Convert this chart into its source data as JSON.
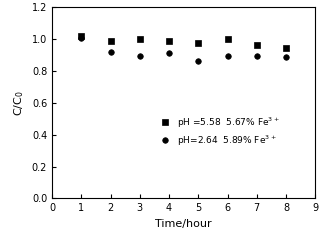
{
  "series1": {
    "x": [
      1,
      2,
      3,
      4,
      5,
      6,
      7,
      8
    ],
    "y": [
      1.02,
      0.985,
      1.0,
      0.985,
      0.975,
      1.0,
      0.965,
      0.945
    ],
    "marker": "s",
    "color": "black",
    "label": "pH =5.58  5.67% Fe$^{3+}$",
    "markersize": 4
  },
  "series2": {
    "x": [
      1,
      2,
      3,
      4,
      5,
      6,
      7,
      8
    ],
    "y": [
      1.005,
      0.92,
      0.895,
      0.915,
      0.865,
      0.895,
      0.895,
      0.89
    ],
    "marker": "o",
    "color": "black",
    "label": "pH=2.64  5.89% Fe$^{3+}$",
    "markersize": 4
  },
  "xlabel": "Time/hour",
  "ylabel": "C/C$_0$",
  "xlim": [
    0,
    9
  ],
  "ylim": [
    0.0,
    1.2
  ],
  "xticks": [
    0,
    1,
    2,
    3,
    4,
    5,
    6,
    7,
    8,
    9
  ],
  "yticks": [
    0.0,
    0.2,
    0.4,
    0.6,
    0.8,
    1.0,
    1.2
  ],
  "background": "#ffffff"
}
